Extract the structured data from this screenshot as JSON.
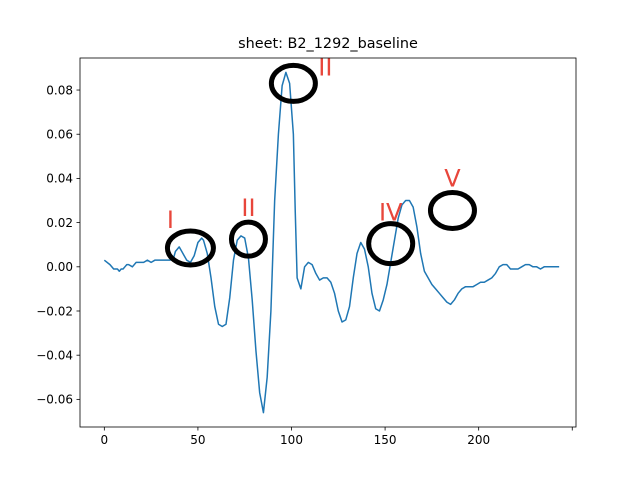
{
  "chart_data": {
    "type": "line",
    "title": "sheet: B2_1292_baseline",
    "xlabel": "",
    "ylabel": "",
    "xlim": [
      -13,
      252
    ],
    "ylim": [
      -0.0725,
      0.0945
    ],
    "xticks": [
      0,
      50,
      100,
      150,
      200,
      250
    ],
    "xtick_labels": [
      "0",
      "50",
      "100",
      "150",
      "200",
      ""
    ],
    "yticks": [
      -0.06,
      -0.04,
      -0.02,
      0.0,
      0.02,
      0.04,
      0.06,
      0.08
    ],
    "ytick_labels": [
      "−0.06",
      "−0.04",
      "−0.02",
      "0.00",
      "0.02",
      "0.04",
      "0.06",
      "0.08"
    ],
    "grid": false,
    "line_color": "#1f77b4",
    "series": [
      {
        "x": [
          0,
          3,
          5,
          7,
          8,
          9,
          10,
          11,
          12,
          13,
          15,
          17,
          19,
          21,
          23,
          25,
          27,
          29,
          31,
          33,
          35,
          37,
          38,
          40,
          42,
          44,
          46,
          48,
          50,
          52,
          53,
          55,
          57,
          59,
          61,
          63,
          65,
          67,
          69,
          71,
          73,
          75,
          77,
          79,
          81,
          83,
          85,
          87,
          89,
          90,
          91,
          93,
          95,
          97,
          99,
          101,
          102,
          103,
          105,
          107,
          109,
          111,
          113,
          115,
          117,
          119,
          121,
          123,
          125,
          127,
          129,
          131,
          133,
          135,
          137,
          139,
          141,
          143,
          145,
          147,
          149,
          151,
          153,
          155,
          157,
          159,
          161,
          163,
          165,
          167,
          169,
          171,
          173,
          175,
          177,
          179,
          181,
          183,
          185,
          187,
          189,
          191,
          193,
          195,
          197,
          199,
          201,
          203,
          205,
          207,
          209,
          211,
          213,
          215,
          217,
          219,
          221,
          223,
          225,
          227,
          229,
          231,
          233,
          235,
          237,
          239,
          241,
          243
        ],
        "y": [
          0.003,
          0.001,
          -0.001,
          -0.001,
          -0.002,
          -0.001,
          -0.001,
          0.0,
          0.001,
          0.001,
          0.0,
          0.002,
          0.002,
          0.002,
          0.003,
          0.002,
          0.003,
          0.003,
          0.003,
          0.003,
          0.003,
          0.004,
          0.007,
          0.009,
          0.006,
          0.003,
          0.002,
          0.005,
          0.011,
          0.013,
          0.012,
          0.006,
          -0.005,
          -0.018,
          -0.026,
          -0.027,
          -0.026,
          -0.014,
          0.003,
          0.012,
          0.014,
          0.013,
          0.004,
          -0.015,
          -0.038,
          -0.057,
          -0.066,
          -0.05,
          -0.02,
          0.005,
          0.03,
          0.06,
          0.082,
          0.088,
          0.083,
          0.06,
          0.025,
          -0.005,
          -0.01,
          0.0,
          0.002,
          0.001,
          -0.003,
          -0.006,
          -0.005,
          -0.005,
          -0.007,
          -0.012,
          -0.02,
          -0.025,
          -0.024,
          -0.018,
          -0.005,
          0.006,
          0.011,
          0.008,
          0.0,
          -0.012,
          -0.019,
          -0.02,
          -0.015,
          -0.008,
          0.002,
          0.012,
          0.022,
          0.028,
          0.03,
          0.03,
          0.027,
          0.018,
          0.006,
          -0.002,
          -0.005,
          -0.008,
          -0.01,
          -0.012,
          -0.014,
          -0.016,
          -0.017,
          -0.015,
          -0.012,
          -0.01,
          -0.009,
          -0.009,
          -0.009,
          -0.008,
          -0.007,
          -0.007,
          -0.006,
          -0.005,
          -0.003,
          0.0,
          0.001,
          0.001,
          -0.001,
          -0.001,
          -0.001,
          0.0,
          0.001,
          0.001,
          0.0,
          0.0,
          -0.001,
          0.0,
          0.0,
          0.0,
          0.0,
          0.0
        ]
      }
    ],
    "annotations": [
      {
        "label": "I",
        "x": 46,
        "y": 0.0085,
        "label_color": "#e8463b"
      },
      {
        "label": "II",
        "x": 77,
        "y": 0.0125,
        "label_color": "#e8463b"
      },
      {
        "label": "II",
        "x": 101,
        "y": 0.083,
        "label_color": "#e8463b"
      },
      {
        "label": "IV",
        "x": 153,
        "y": 0.0105,
        "label_color": "#e8463b"
      },
      {
        "label": "V",
        "x": 186,
        "y": 0.0255,
        "label_color": "#e8463b"
      }
    ]
  }
}
